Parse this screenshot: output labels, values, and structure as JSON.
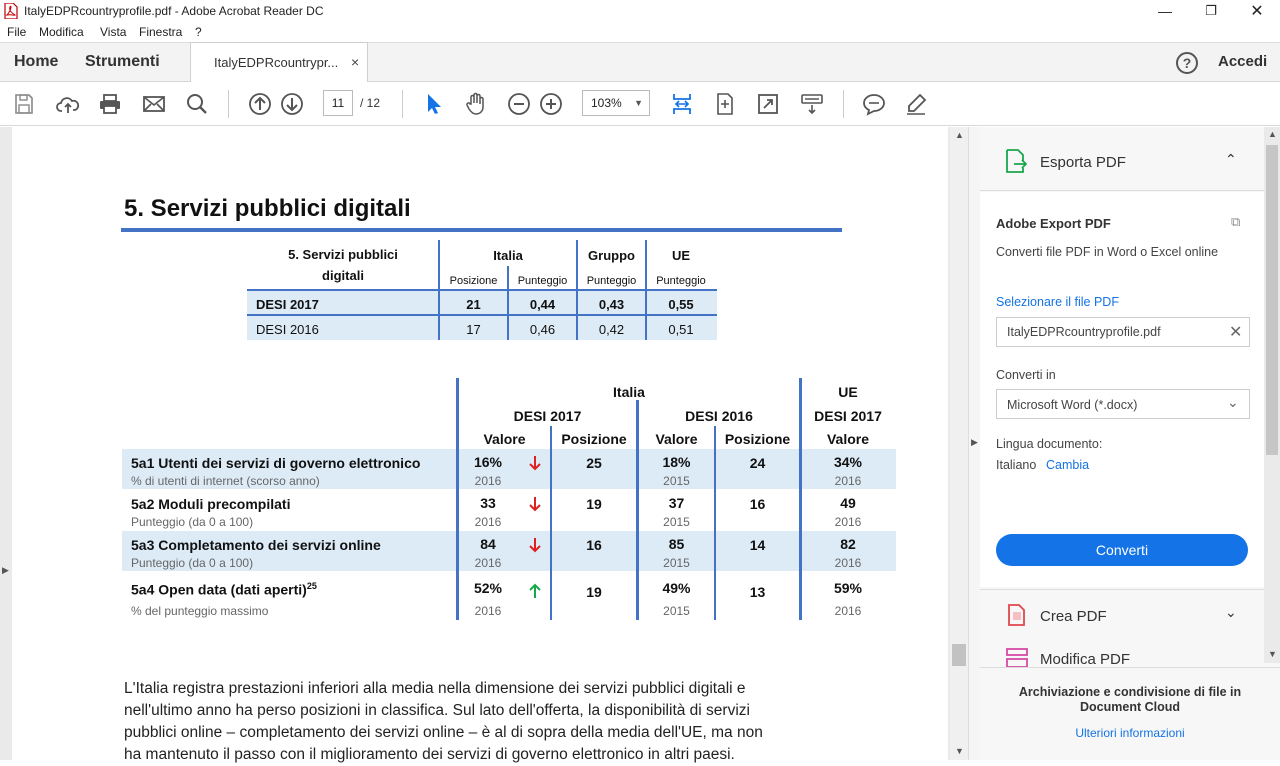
{
  "window": {
    "title": "ItalyEDPRcountryprofile.pdf - Adobe Acrobat Reader DC"
  },
  "menu": [
    "File",
    "Modifica",
    "Vista",
    "Finestra",
    "?"
  ],
  "nav": {
    "home": "Home",
    "tools": "Strumenti",
    "doc_tab": "ItalyEDPRcountrypr...",
    "close": "×",
    "help": "?",
    "sign_in": "Accedi"
  },
  "toolbar": {
    "page_current": "11",
    "page_total": "/  12",
    "zoom": "103%"
  },
  "doc": {
    "heading": "5. Servizi pubblici digitali",
    "summary": {
      "title_line1": "5. Servizi pubblici",
      "title_line2": "digitali",
      "col_italia": "Italia",
      "col_gruppo": "Gruppo",
      "col_ue": "UE",
      "sub_pos": "Posizione",
      "sub_pun": "Punteggio",
      "rows": [
        {
          "label": "DESI 2017",
          "pos": "21",
          "pun": "0,44",
          "gruppo": "0,43",
          "ue": "0,55"
        },
        {
          "label": "DESI 2016",
          "pos": "17",
          "pun": "0,46",
          "gruppo": "0,42",
          "ue": "0,51"
        }
      ]
    },
    "detail": {
      "h_italia": "Italia",
      "h_ue": "UE",
      "h_desi2017": "DESI 2017",
      "h_desi2016": "DESI 2016",
      "h_ue_desi2017": "DESI 2017",
      "h_valore": "Valore",
      "h_posizione": "Posizione",
      "rows": [
        {
          "label": "5a1 Utenti dei servizi di governo elettronico",
          "sub": "% di utenti di internet (scorso anno)",
          "v17": "16%",
          "y17": "2016",
          "trend": "down",
          "p17": "25",
          "v16": "18%",
          "y16": "2015",
          "p16": "24",
          "ue": "34%",
          "yue": "2016"
        },
        {
          "label": "5a2 Moduli precompilati",
          "sub": "Punteggio (da 0 a 100)",
          "v17": "33",
          "y17": "2016",
          "trend": "down",
          "p17": "19",
          "v16": "37",
          "y16": "2015",
          "p16": "16",
          "ue": "49",
          "yue": "2016"
        },
        {
          "label": "5a3 Completamento dei servizi online",
          "sub": "Punteggio (da 0 a 100)",
          "v17": "84",
          "y17": "2016",
          "trend": "down",
          "p17": "16",
          "v16": "85",
          "y16": "2015",
          "p16": "14",
          "ue": "82",
          "yue": "2016"
        },
        {
          "label": "5a4 Open data (dati aperti)",
          "sup": "25",
          "sub": "% del punteggio massimo",
          "v17": "52%",
          "y17": "2016",
          "trend": "up",
          "p17": "19",
          "v16": "49%",
          "y16": "2015",
          "p16": "13",
          "ue": "59%",
          "yue": "2016"
        }
      ]
    },
    "paragraph": [
      "L'Italia registra prestazioni inferiori alla media nella dimensione dei servizi pubblici digitali e",
      "nell'ultimo anno ha perso posizioni in classifica. Sul lato dell'offerta, la disponibilità di servizi",
      "pubblici online – completamento dei servizi online – è al di sopra della media dell'UE, ma non",
      "ha mantenuto il passo con il miglioramento dei servizi di governo elettronico in altri paesi."
    ]
  },
  "panel": {
    "export_title": "Esporta PDF",
    "adobe_export": "Adobe Export PDF",
    "desc": "Converti file PDF in Word o Excel online",
    "select_label": "Selezionare il file PDF",
    "file_name": "ItalyEDPRcountryprofile.pdf",
    "convert_to_label": "Converti in",
    "format": "Microsoft Word (*.docx)",
    "lang_label": "Lingua documento:",
    "lang_value": "Italiano",
    "lang_change": "Cambia",
    "convert_button": "Converti",
    "create_pdf": "Crea PDF",
    "edit_pdf": "Modifica PDF",
    "cloud_text_1": "Archiviazione e condivisione di file in",
    "cloud_text_2": "Document Cloud",
    "more_info": "Ulteriori informazioni"
  },
  "colors": {
    "accent": "#1473e6",
    "table_blue": "#4472c4",
    "row_fill": "#ddebf7",
    "down": "#e02020",
    "up": "#1aa64b"
  }
}
